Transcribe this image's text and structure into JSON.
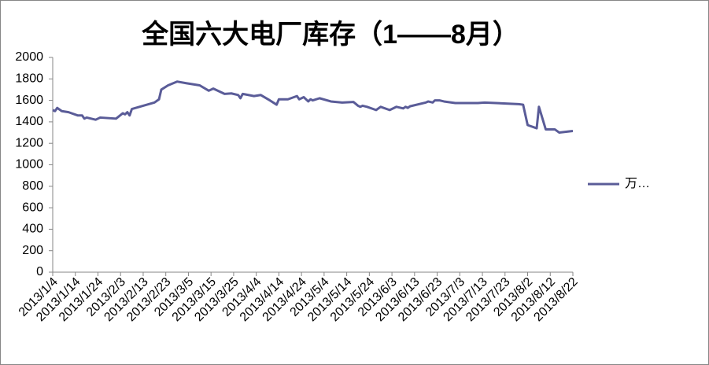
{
  "chart_data": {
    "type": "line",
    "title": "全国六大电厂库存（1——8月）",
    "x": [
      "2013/1/4",
      "2013/1/5",
      "2013/1/6",
      "2013/1/8",
      "2013/1/11",
      "2013/1/15",
      "2013/1/17",
      "2013/1/18",
      "2013/1/19",
      "2013/1/23",
      "2013/1/25",
      "2013/2/1",
      "2013/2/4",
      "2013/2/5",
      "2013/2/6",
      "2013/2/7",
      "2013/2/8",
      "2013/2/18",
      "2013/2/20",
      "2013/2/21",
      "2013/2/24",
      "2013/2/28",
      "2013/3/4",
      "2013/3/10",
      "2013/3/14",
      "2013/3/16",
      "2013/3/21",
      "2013/3/24",
      "2013/3/27",
      "2013/3/28",
      "2013/3/29",
      "2013/4/3",
      "2013/4/6",
      "2013/4/10",
      "2013/4/13",
      "2013/4/14",
      "2013/4/18",
      "2013/4/22",
      "2013/4/23",
      "2013/4/25",
      "2013/4/27",
      "2013/4/28",
      "2013/4/29",
      "2013/5/2",
      "2013/5/7",
      "2013/5/12",
      "2013/5/17",
      "2013/5/19",
      "2013/5/20",
      "2013/5/21",
      "2013/5/23",
      "2013/5/27",
      "2013/5/29",
      "2013/6/2",
      "2013/6/5",
      "2013/6/8",
      "2013/6/9",
      "2013/6/10",
      "2013/6/11",
      "2013/6/18",
      "2013/6/19",
      "2013/6/21",
      "2013/6/22",
      "2013/6/24",
      "2013/6/26",
      "2013/7/1",
      "2013/7/11",
      "2013/7/14",
      "2013/7/29",
      "2013/7/31",
      "2013/8/2",
      "2013/8/6",
      "2013/8/7",
      "2013/8/10",
      "2013/8/14",
      "2013/8/16",
      "2013/8/22"
    ],
    "series": [
      {
        "name": "万…",
        "color": "#5a5c98",
        "values": [
          1510,
          1500,
          1530,
          1500,
          1490,
          1460,
          1460,
          1430,
          1440,
          1420,
          1440,
          1430,
          1480,
          1470,
          1490,
          1460,
          1520,
          1580,
          1610,
          1700,
          1740,
          1775,
          1760,
          1740,
          1690,
          1710,
          1660,
          1665,
          1650,
          1620,
          1660,
          1640,
          1650,
          1600,
          1560,
          1610,
          1610,
          1640,
          1610,
          1630,
          1590,
          1610,
          1600,
          1620,
          1590,
          1580,
          1585,
          1550,
          1540,
          1550,
          1540,
          1510,
          1540,
          1510,
          1540,
          1525,
          1540,
          1530,
          1545,
          1580,
          1590,
          1580,
          1600,
          1600,
          1590,
          1575,
          1575,
          1580,
          1565,
          1560,
          1370,
          1340,
          1540,
          1330,
          1330,
          1300,
          1315
        ]
      }
    ],
    "xlim": [
      "2013/1/4",
      "2013/8/22"
    ],
    "xticks": [
      "2013/1/4",
      "2013/1/14",
      "2013/1/24",
      "2013/2/3",
      "2013/2/13",
      "2013/2/23",
      "2013/3/5",
      "2013/3/15",
      "2013/3/25",
      "2013/4/4",
      "2013/4/14",
      "2013/4/24",
      "2013/5/4",
      "2013/5/14",
      "2013/5/24",
      "2013/6/3",
      "2013/6/13",
      "2013/6/23",
      "2013/7/3",
      "2013/7/13",
      "2013/7/23",
      "2013/8/2",
      "2013/8/12",
      "2013/8/22"
    ],
    "ylim": [
      0,
      2000
    ],
    "yticks": [
      0,
      200,
      400,
      600,
      800,
      1000,
      1200,
      1400,
      1600,
      1800,
      2000
    ],
    "grid": false,
    "legend": "right"
  }
}
